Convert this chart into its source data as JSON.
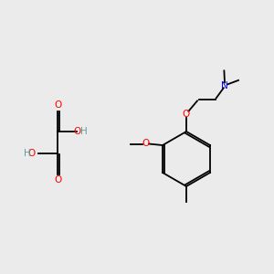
{
  "background_color": "#ebebeb",
  "atom_colors": {
    "O": "#ff0000",
    "N": "#0000ff",
    "C": "#000000",
    "H": "#5f9ea0"
  },
  "figsize": [
    3.0,
    3.0
  ],
  "dpi": 100,
  "lw": 1.3,
  "fs": 7.5
}
